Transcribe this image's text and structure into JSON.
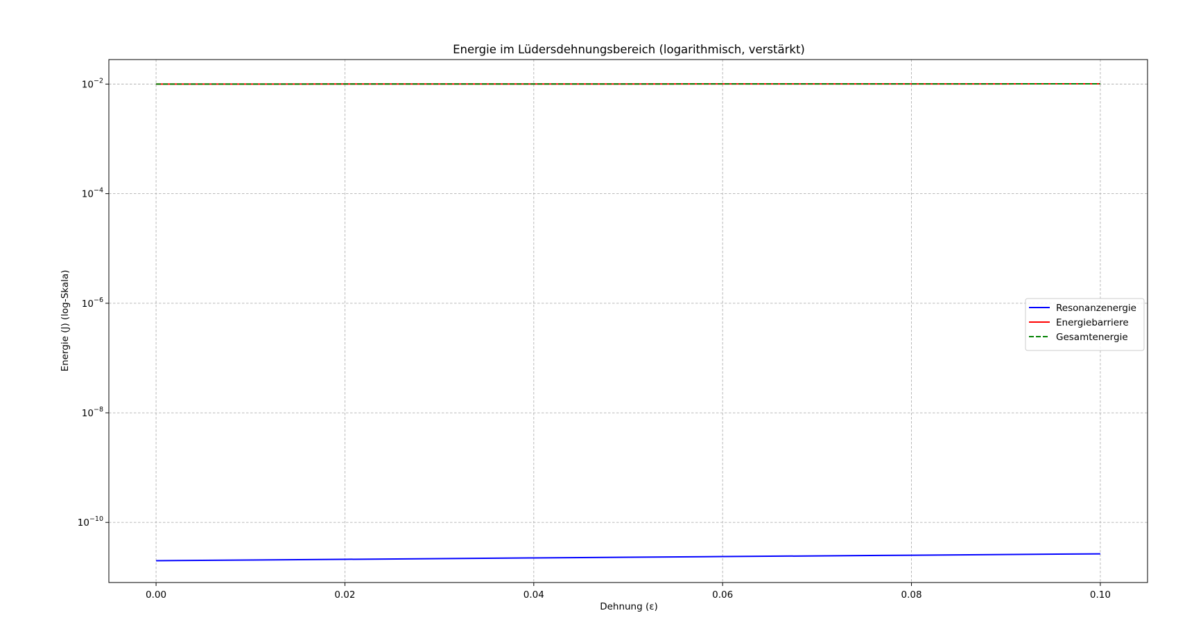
{
  "chart_data": {
    "type": "line",
    "title": "Energie im Lüdersdehnungsbereich (logarithmisch, verstärkt)",
    "xlabel": "Dehnung (ε)",
    "ylabel": "Energie (J) (log-Skala)",
    "yscale": "log",
    "xlim": [
      -0.005,
      0.105
    ],
    "ylim": [
      8e-12,
      0.028
    ],
    "x_ticks": [
      0.0,
      0.02,
      0.04,
      0.06,
      0.08,
      0.1
    ],
    "x_tick_labels": [
      "0.00",
      "0.02",
      "0.04",
      "0.06",
      "0.08",
      "0.10"
    ],
    "y_ticks": [
      1e-10,
      1e-08,
      1e-06,
      0.0001,
      0.01
    ],
    "y_tick_labels": [
      {
        "base": "10",
        "exp": "−10"
      },
      {
        "base": "10",
        "exp": "−8"
      },
      {
        "base": "10",
        "exp": "−6"
      },
      {
        "base": "10",
        "exp": "−4"
      },
      {
        "base": "10",
        "exp": "−2"
      }
    ],
    "grid": true,
    "legend_position": "center-right",
    "x": [
      0.0,
      0.02,
      0.04,
      0.06,
      0.08,
      0.1
    ],
    "series": [
      {
        "name": "Resonanzenergie",
        "color": "#0000ff",
        "dash": "solid",
        "values": [
          2e-11,
          2.12e-11,
          2.25e-11,
          2.38e-11,
          2.52e-11,
          2.67e-11
        ]
      },
      {
        "name": "Energiebarriere",
        "color": "#ff0000",
        "dash": "solid",
        "values": [
          0.01,
          0.01002,
          0.01004,
          0.01006,
          0.01008,
          0.0101
        ]
      },
      {
        "name": "Gesamtenergie",
        "color": "#008000",
        "dash": "dashed",
        "values": [
          0.01,
          0.01002,
          0.01004,
          0.01006,
          0.01008,
          0.0101
        ]
      }
    ]
  }
}
